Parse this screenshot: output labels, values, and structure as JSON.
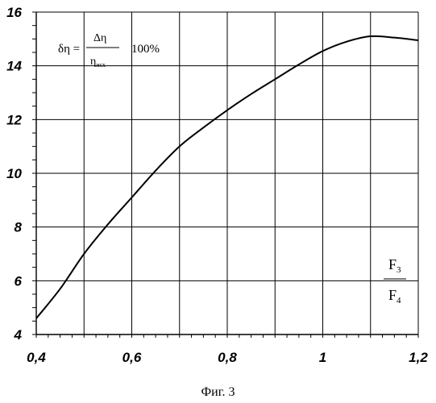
{
  "chart_data": {
    "type": "line",
    "xlim": [
      0.4,
      1.2
    ],
    "ylim": [
      4,
      16
    ],
    "grid": true,
    "x_ticks": [
      0.4,
      0.5,
      0.6,
      0.7,
      0.8,
      0.9,
      1.0,
      1.1,
      1.2
    ],
    "x_tick_labels": [
      "0,4",
      "0,6",
      "0,8",
      "1",
      "1,2"
    ],
    "y_ticks": [
      4,
      6,
      8,
      10,
      12,
      14,
      16
    ],
    "y_tick_labels": [
      "4",
      "6",
      "8",
      "10",
      "12",
      "14",
      "16"
    ],
    "series": [
      {
        "x": [
          0.4,
          0.45,
          0.5,
          0.55,
          0.6,
          0.65,
          0.7,
          0.75,
          0.8,
          0.85,
          0.9,
          0.95,
          1.0,
          1.05,
          1.1,
          1.15,
          1.2
        ],
        "values": [
          4.6,
          5.7,
          7.0,
          8.1,
          9.1,
          10.1,
          11.0,
          11.7,
          12.35,
          12.95,
          13.5,
          14.05,
          14.55,
          14.9,
          15.1,
          15.05,
          14.95
        ]
      }
    ],
    "annotation": {
      "lhs": "δη =",
      "numerator": "Δη",
      "denominator_main": "η",
      "denominator_sub": "исх",
      "suffix": "100%"
    },
    "x_label": {
      "numerator_main": "F",
      "numerator_sub": "3",
      "denominator_main": "F",
      "denominator_sub": "4"
    }
  },
  "caption": "Фиг. 3"
}
